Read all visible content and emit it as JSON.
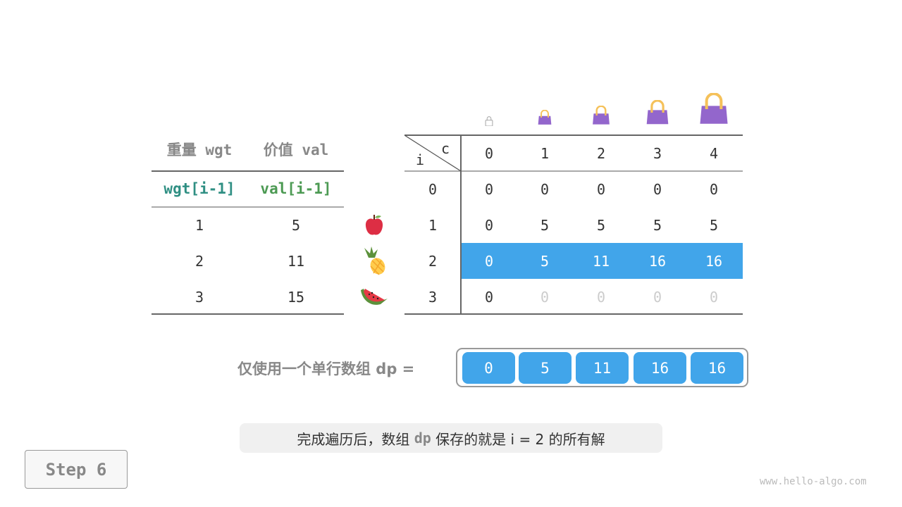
{
  "left_table": {
    "headers": [
      "重量 wgt",
      "价值 val"
    ],
    "subheaders": [
      "wgt[i-1]",
      "val[i-1]"
    ],
    "rows": [
      [
        "1",
        "5"
      ],
      [
        "2",
        "11"
      ],
      [
        "3",
        "15"
      ]
    ],
    "items": [
      "apple-icon",
      "pineapple-icon",
      "watermelon-icon"
    ]
  },
  "dp_table": {
    "corner_c": "c",
    "corner_i": "i",
    "capacities": [
      "0",
      "1",
      "2",
      "3",
      "4"
    ],
    "row_labels": [
      "0",
      "1",
      "2",
      "3"
    ],
    "rows": [
      [
        "0",
        "0",
        "0",
        "0",
        "0"
      ],
      [
        "0",
        "5",
        "5",
        "5",
        "5"
      ],
      [
        "0",
        "5",
        "11",
        "16",
        "16"
      ],
      [
        "0",
        "0",
        "0",
        "0",
        "0"
      ]
    ],
    "highlighted_row": 2,
    "faded_row": 3
  },
  "dp_array": {
    "label": "仅使用一个单行数组 dp =",
    "values": [
      "0",
      "5",
      "11",
      "16",
      "16"
    ]
  },
  "caption": {
    "before": "完成遍历后，数组 ",
    "code": "dp",
    "after": " 保存的就是 i = 2 的所有解"
  },
  "step_label": "Step 6",
  "watermark": "www.hello-algo.com",
  "colors": {
    "highlight": "#41a5ea",
    "wgt": "#2f8f83",
    "val": "#4c9a53",
    "bag": "#9366cc",
    "handle": "#f5c15a"
  }
}
